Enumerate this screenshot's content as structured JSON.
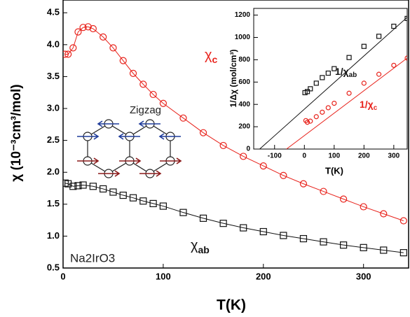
{
  "chart_data": [
    {
      "type": "scatter",
      "xlabel": "T(K)",
      "ylabel": "χ (10⁻³cm³/mol)",
      "xlim": [
        0,
        345
      ],
      "ylim": [
        0.5,
        4.7
      ],
      "xticks": [
        0,
        100,
        200,
        300
      ],
      "yticks": [
        0.5,
        {
          "value": 1,
          "label": "1.0"
        },
        1.5,
        {
          "value": 2,
          "label": "2.0"
        },
        2.5,
        {
          "value": 3,
          "label": "3.0"
        },
        3.5,
        {
          "value": 4,
          "label": "4.0"
        },
        4.5
      ],
      "annotations": [
        "Na2IrO3",
        "Zigzag"
      ],
      "series": [
        {
          "name": "χ",
          "name_sub": "c",
          "color": "#e8221b",
          "marker": "circle",
          "x": [
            2,
            5,
            10,
            15,
            20,
            25,
            30,
            40,
            50,
            60,
            70,
            80,
            90,
            100,
            120,
            140,
            160,
            180,
            200,
            220,
            240,
            260,
            280,
            300,
            320,
            340
          ],
          "values": [
            3.85,
            3.85,
            3.95,
            4.2,
            4.27,
            4.28,
            4.25,
            4.12,
            3.95,
            3.75,
            3.55,
            3.38,
            3.22,
            3.08,
            2.85,
            2.62,
            2.42,
            2.25,
            2.1,
            1.95,
            1.82,
            1.7,
            1.58,
            1.46,
            1.35,
            1.24
          ]
        },
        {
          "name": "χ",
          "name_sub": "ab",
          "color": "#111111",
          "marker": "square",
          "x": [
            2,
            5,
            10,
            15,
            20,
            30,
            40,
            50,
            60,
            70,
            80,
            90,
            100,
            120,
            140,
            160,
            180,
            200,
            220,
            240,
            260,
            280,
            300,
            320,
            340
          ],
          "values": [
            1.83,
            1.82,
            1.78,
            1.79,
            1.8,
            1.78,
            1.74,
            1.69,
            1.64,
            1.6,
            1.55,
            1.51,
            1.47,
            1.37,
            1.28,
            1.2,
            1.13,
            1.07,
            1.01,
            0.96,
            0.91,
            0.86,
            0.82,
            0.78,
            0.74
          ]
        }
      ]
    },
    {
      "type": "scatter",
      "xlabel": "T(K)",
      "ylabel": "1/Δχ (mol/cm³)",
      "xlim": [
        -170,
        345
      ],
      "ylim": [
        0,
        1260
      ],
      "xticks": [
        -100,
        0,
        100,
        200,
        300
      ],
      "yticks": [
        0,
        200,
        400,
        600,
        800,
        1000,
        1200
      ],
      "series": [
        {
          "name": "1/χ",
          "name_sub": "ab",
          "color": "#111111",
          "marker": "square",
          "x": [
            2,
            10,
            20,
            40,
            60,
            80,
            100,
            150,
            200,
            250,
            300,
            345
          ],
          "values": [
            505,
            515,
            540,
            590,
            640,
            680,
            720,
            820,
            920,
            1010,
            1100,
            1170
          ],
          "fit_x": [
            -150,
            345
          ],
          "fit_values": [
            0,
            1180
          ]
        },
        {
          "name": "1/χ",
          "name_sub": "c",
          "color": "#e8221b",
          "marker": "circle",
          "x": [
            5,
            10,
            20,
            40,
            60,
            80,
            100,
            150,
            200,
            250,
            300,
            345
          ],
          "values": [
            255,
            240,
            250,
            290,
            330,
            370,
            410,
            500,
            590,
            670,
            750,
            815
          ],
          "fit_x": [
            -60,
            345
          ],
          "fit_values": [
            0,
            815
          ]
        }
      ]
    }
  ]
}
